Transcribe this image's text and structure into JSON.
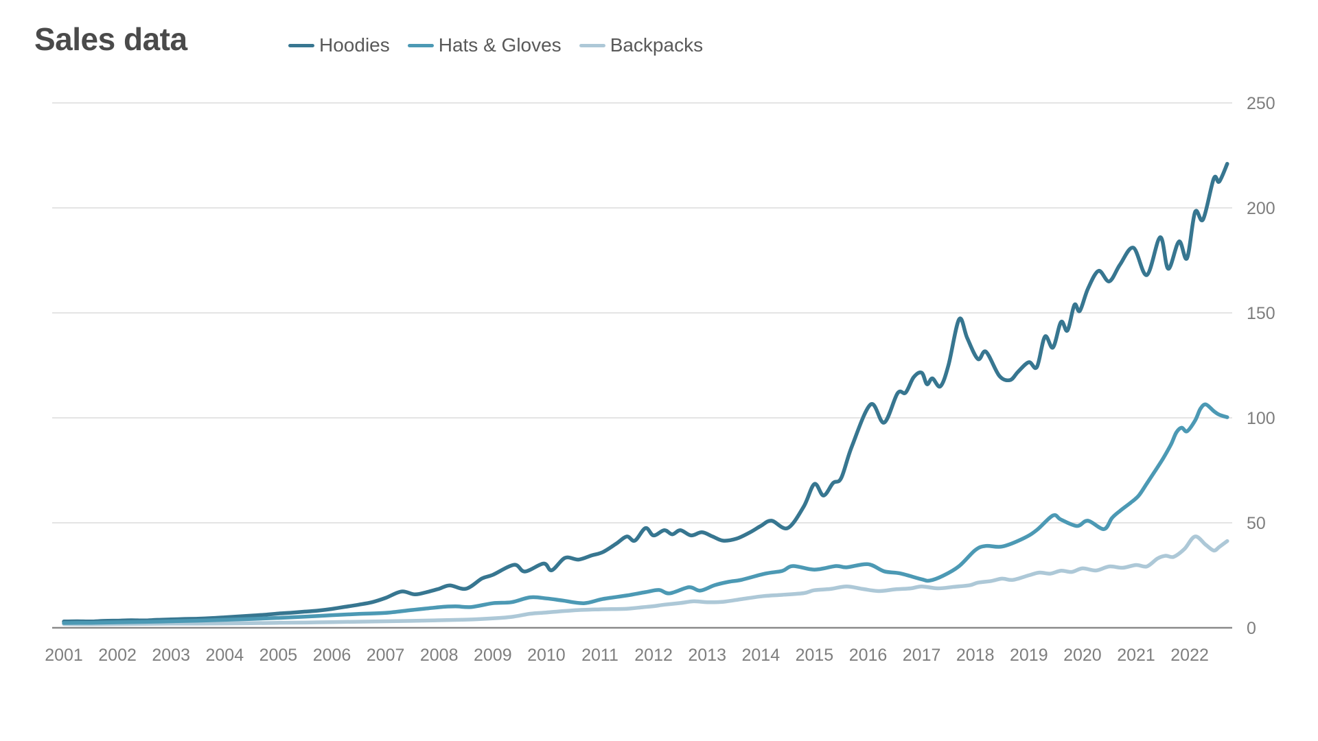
{
  "title": "Sales data",
  "chart_data": {
    "type": "line",
    "title": "Sales data",
    "legend_position": "top",
    "grid": true,
    "x_axis": {
      "tick_labels": [
        "2001",
        "2002",
        "2003",
        "2004",
        "2005",
        "2006",
        "2007",
        "2008",
        "2009",
        "2010",
        "2011",
        "2012",
        "2013",
        "2014",
        "2015",
        "2016",
        "2017",
        "2018",
        "2019",
        "2020",
        "2021",
        "2022"
      ],
      "domain": [
        2001,
        2022.7
      ]
    },
    "y_axis": {
      "tick_labels": [
        "0",
        "50",
        "100",
        "150",
        "200",
        "250"
      ],
      "ticks": [
        0,
        50,
        100,
        150,
        200,
        250
      ],
      "range": [
        0,
        250
      ],
      "side": "right"
    },
    "colors": {
      "grid": "#e4e4e4",
      "axis": "#8a8a8a",
      "tick_text": "#7e7e7e",
      "title_text": "#4a4a4a",
      "legend_text": "#595959"
    },
    "series": [
      {
        "name": "Hoodies",
        "color": "#377690",
        "points": [
          [
            2001.0,
            3
          ],
          [
            2001.25,
            3.1
          ],
          [
            2001.5,
            3
          ],
          [
            2001.75,
            3.3
          ],
          [
            2002.0,
            3.4
          ],
          [
            2002.25,
            3.6
          ],
          [
            2002.5,
            3.5
          ],
          [
            2002.75,
            3.8
          ],
          [
            2003.0,
            4
          ],
          [
            2003.25,
            4.2
          ],
          [
            2003.5,
            4.3
          ],
          [
            2003.75,
            4.6
          ],
          [
            2004.0,
            5
          ],
          [
            2004.25,
            5.4
          ],
          [
            2004.5,
            5.8
          ],
          [
            2004.75,
            6.2
          ],
          [
            2005.0,
            6.8
          ],
          [
            2005.25,
            7.2
          ],
          [
            2005.5,
            7.7
          ],
          [
            2005.75,
            8.2
          ],
          [
            2006.0,
            9
          ],
          [
            2006.25,
            10
          ],
          [
            2006.5,
            11
          ],
          [
            2006.75,
            12.2
          ],
          [
            2007.0,
            14.2
          ],
          [
            2007.3,
            17.3
          ],
          [
            2007.55,
            15.9
          ],
          [
            2007.8,
            17.2
          ],
          [
            2008.0,
            18.6
          ],
          [
            2008.2,
            20.2
          ],
          [
            2008.5,
            18.6
          ],
          [
            2008.8,
            23.5
          ],
          [
            2009.0,
            25.2
          ],
          [
            2009.4,
            30
          ],
          [
            2009.6,
            26.8
          ],
          [
            2009.95,
            30.6
          ],
          [
            2010.1,
            27.4
          ],
          [
            2010.35,
            33.3
          ],
          [
            2010.6,
            32.5
          ],
          [
            2010.85,
            34.5
          ],
          [
            2011.05,
            36
          ],
          [
            2011.3,
            40
          ],
          [
            2011.5,
            43.5
          ],
          [
            2011.65,
            41.5
          ],
          [
            2011.85,
            47.5
          ],
          [
            2012.0,
            44
          ],
          [
            2012.2,
            46.5
          ],
          [
            2012.35,
            44.5
          ],
          [
            2012.5,
            46.5
          ],
          [
            2012.7,
            44
          ],
          [
            2012.9,
            45.5
          ],
          [
            2013.1,
            43.5
          ],
          [
            2013.3,
            41.5
          ],
          [
            2013.55,
            42.5
          ],
          [
            2013.8,
            45.5
          ],
          [
            2014.0,
            48.5
          ],
          [
            2014.2,
            51
          ],
          [
            2014.5,
            47.5
          ],
          [
            2014.8,
            57.7
          ],
          [
            2015.0,
            68.5
          ],
          [
            2015.17,
            63
          ],
          [
            2015.35,
            69
          ],
          [
            2015.5,
            71.3
          ],
          [
            2015.7,
            86.5
          ],
          [
            2016.05,
            106.4
          ],
          [
            2016.3,
            97.7
          ],
          [
            2016.55,
            111.7
          ],
          [
            2016.7,
            112
          ],
          [
            2016.85,
            119.3
          ],
          [
            2017.0,
            121.5
          ],
          [
            2017.1,
            116
          ],
          [
            2017.2,
            118.8
          ],
          [
            2017.35,
            115
          ],
          [
            2017.5,
            125
          ],
          [
            2017.7,
            147
          ],
          [
            2017.85,
            138
          ],
          [
            2018.05,
            128
          ],
          [
            2018.2,
            131.5
          ],
          [
            2018.45,
            120
          ],
          [
            2018.65,
            118
          ],
          [
            2018.8,
            122
          ],
          [
            2019.0,
            126.5
          ],
          [
            2019.15,
            124.2
          ],
          [
            2019.3,
            138.7
          ],
          [
            2019.45,
            133.5
          ],
          [
            2019.6,
            145.7
          ],
          [
            2019.72,
            141.6
          ],
          [
            2019.85,
            153.8
          ],
          [
            2019.95,
            150.9
          ],
          [
            2020.1,
            161.4
          ],
          [
            2020.3,
            170
          ],
          [
            2020.5,
            165
          ],
          [
            2020.7,
            173
          ],
          [
            2020.95,
            181
          ],
          [
            2021.2,
            168
          ],
          [
            2021.45,
            186
          ],
          [
            2021.6,
            171
          ],
          [
            2021.8,
            184
          ],
          [
            2021.95,
            176
          ],
          [
            2022.1,
            198
          ],
          [
            2022.25,
            194.5
          ],
          [
            2022.45,
            214
          ],
          [
            2022.55,
            212.5
          ],
          [
            2022.7,
            221
          ]
        ]
      },
      {
        "name": "Hats & Gloves",
        "color": "#4c99b4",
        "points": [
          [
            2001.0,
            2.3
          ],
          [
            2001.5,
            2.4
          ],
          [
            2002.0,
            2.6
          ],
          [
            2002.5,
            2.8
          ],
          [
            2003.0,
            3.1
          ],
          [
            2003.5,
            3.4
          ],
          [
            2004.0,
            3.8
          ],
          [
            2004.5,
            4.2
          ],
          [
            2005.0,
            4.7
          ],
          [
            2005.5,
            5.3
          ],
          [
            2006.0,
            6
          ],
          [
            2006.5,
            6.6
          ],
          [
            2007.0,
            7.1
          ],
          [
            2007.5,
            8.5
          ],
          [
            2008.0,
            9.8
          ],
          [
            2008.3,
            10.2
          ],
          [
            2008.6,
            9.9
          ],
          [
            2009.0,
            11.7
          ],
          [
            2009.35,
            12.2
          ],
          [
            2009.7,
            14.5
          ],
          [
            2010.0,
            14
          ],
          [
            2010.3,
            13
          ],
          [
            2010.7,
            11.7
          ],
          [
            2011.05,
            13.7
          ],
          [
            2011.5,
            15.4
          ],
          [
            2011.85,
            17
          ],
          [
            2012.1,
            18
          ],
          [
            2012.3,
            16.4
          ],
          [
            2012.66,
            19.3
          ],
          [
            2012.87,
            17.7
          ],
          [
            2013.14,
            20.3
          ],
          [
            2013.4,
            21.9
          ],
          [
            2013.65,
            22.9
          ],
          [
            2014.08,
            25.8
          ],
          [
            2014.4,
            27.1
          ],
          [
            2014.6,
            29.4
          ],
          [
            2015.0,
            27.7
          ],
          [
            2015.4,
            29.4
          ],
          [
            2015.6,
            28.8
          ],
          [
            2016.0,
            30.3
          ],
          [
            2016.3,
            26.9
          ],
          [
            2016.6,
            25.9
          ],
          [
            2017.0,
            23.1
          ],
          [
            2017.15,
            22.5
          ],
          [
            2017.4,
            24.8
          ],
          [
            2017.7,
            29.4
          ],
          [
            2018.0,
            37
          ],
          [
            2018.2,
            39
          ],
          [
            2018.5,
            38.7
          ],
          [
            2018.9,
            42.6
          ],
          [
            2019.15,
            46.6
          ],
          [
            2019.45,
            53.5
          ],
          [
            2019.6,
            51.5
          ],
          [
            2019.9,
            48.5
          ],
          [
            2020.1,
            51
          ],
          [
            2020.4,
            47
          ],
          [
            2020.55,
            52.3
          ],
          [
            2020.7,
            55.7
          ],
          [
            2020.9,
            59.6
          ],
          [
            2021.05,
            63
          ],
          [
            2021.2,
            68.7
          ],
          [
            2021.35,
            74.5
          ],
          [
            2021.5,
            80.5
          ],
          [
            2021.65,
            87.3
          ],
          [
            2021.75,
            93
          ],
          [
            2021.85,
            95.3
          ],
          [
            2021.95,
            93.6
          ],
          [
            2022.1,
            98.7
          ],
          [
            2022.2,
            104.3
          ],
          [
            2022.3,
            106.4
          ],
          [
            2022.45,
            103.2
          ],
          [
            2022.55,
            101.5
          ],
          [
            2022.7,
            100.3
          ]
        ]
      },
      {
        "name": "Backpacks",
        "color": "#adc8d7",
        "points": [
          [
            2001.0,
            1.8
          ],
          [
            2001.5,
            1.7
          ],
          [
            2002.0,
            1.8
          ],
          [
            2002.5,
            1.9
          ],
          [
            2003.0,
            2
          ],
          [
            2003.5,
            2
          ],
          [
            2004.0,
            2.1
          ],
          [
            2004.5,
            2.2
          ],
          [
            2005.0,
            2.4
          ],
          [
            2005.5,
            2.5
          ],
          [
            2006.0,
            2.7
          ],
          [
            2006.5,
            2.9
          ],
          [
            2007.0,
            3.1
          ],
          [
            2007.5,
            3.3
          ],
          [
            2008.0,
            3.6
          ],
          [
            2008.5,
            3.9
          ],
          [
            2009.0,
            4.5
          ],
          [
            2009.35,
            5.2
          ],
          [
            2009.7,
            6.7
          ],
          [
            2010.0,
            7.3
          ],
          [
            2010.5,
            8.3
          ],
          [
            2011.0,
            8.8
          ],
          [
            2011.5,
            9.1
          ],
          [
            2011.8,
            9.8
          ],
          [
            2012.0,
            10.3
          ],
          [
            2012.2,
            11
          ],
          [
            2012.5,
            11.8
          ],
          [
            2012.75,
            12.6
          ],
          [
            2013.0,
            12.2
          ],
          [
            2013.3,
            12.4
          ],
          [
            2013.65,
            13.7
          ],
          [
            2014.05,
            15.1
          ],
          [
            2014.4,
            15.7
          ],
          [
            2014.8,
            16.5
          ],
          [
            2015.0,
            17.9
          ],
          [
            2015.3,
            18.5
          ],
          [
            2015.6,
            19.7
          ],
          [
            2015.9,
            18.5
          ],
          [
            2016.2,
            17.5
          ],
          [
            2016.5,
            18.3
          ],
          [
            2016.8,
            18.8
          ],
          [
            2017.0,
            19.7
          ],
          [
            2017.3,
            18.8
          ],
          [
            2017.6,
            19.5
          ],
          [
            2017.9,
            20.3
          ],
          [
            2018.05,
            21.5
          ],
          [
            2018.3,
            22.3
          ],
          [
            2018.5,
            23.4
          ],
          [
            2018.7,
            22.8
          ],
          [
            2019.0,
            25
          ],
          [
            2019.2,
            26.3
          ],
          [
            2019.4,
            25.8
          ],
          [
            2019.6,
            27.2
          ],
          [
            2019.8,
            26.6
          ],
          [
            2020.0,
            28.3
          ],
          [
            2020.25,
            27.3
          ],
          [
            2020.5,
            29.2
          ],
          [
            2020.75,
            28.6
          ],
          [
            2021.0,
            29.9
          ],
          [
            2021.2,
            29.2
          ],
          [
            2021.4,
            33
          ],
          [
            2021.55,
            34.3
          ],
          [
            2021.7,
            33.8
          ],
          [
            2021.9,
            37.5
          ],
          [
            2022.1,
            43.5
          ],
          [
            2022.3,
            39.5
          ],
          [
            2022.45,
            36.8
          ],
          [
            2022.55,
            38.5
          ],
          [
            2022.7,
            41.3
          ]
        ]
      }
    ]
  }
}
